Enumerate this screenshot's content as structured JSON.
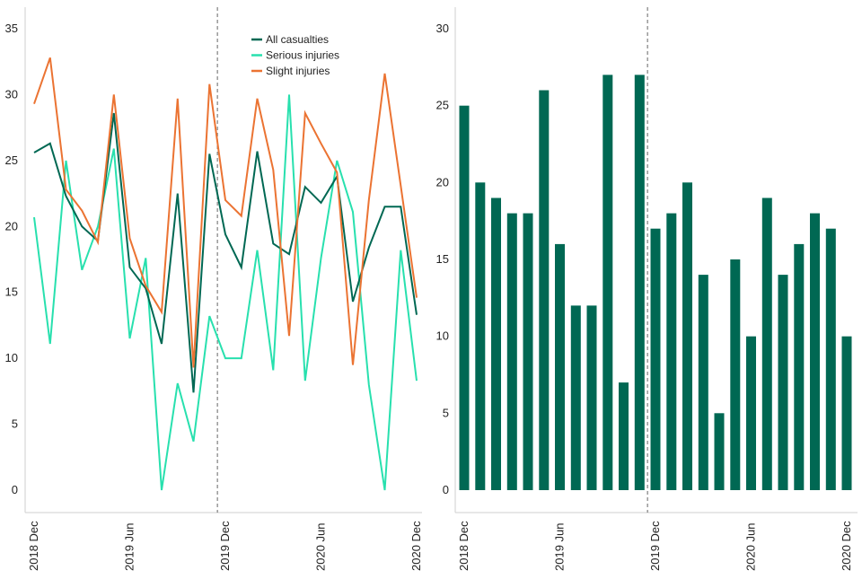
{
  "chart_data": [
    {
      "type": "line",
      "title": "",
      "xlabel": "",
      "ylabel": "",
      "ylim": [
        0,
        35
      ],
      "yticks": [
        0,
        5,
        10,
        15,
        20,
        25,
        30,
        35
      ],
      "x_tick_labels": [
        {
          "index": 0,
          "label": "2018  Dec"
        },
        {
          "index": 6,
          "label": "2019  Jun"
        },
        {
          "index": 12,
          "label": "2019  Dec"
        },
        {
          "index": 18,
          "label": "2020  Jun"
        },
        {
          "index": 24,
          "label": "2020  Dec"
        }
      ],
      "reference_line_index": 11.5,
      "legend_position": "top-center",
      "series": [
        {
          "name": "All casualties",
          "color": "#006853",
          "values": [
            25.6,
            26.3,
            22.3,
            20.0,
            18.9,
            28.6,
            16.9,
            15.3,
            11.1,
            22.5,
            7.4,
            25.5,
            19.4,
            16.9,
            25.7,
            18.7,
            17.9,
            23.0,
            21.8,
            23.8,
            14.3,
            18.4,
            21.5,
            21.5,
            13.3
          ]
        },
        {
          "name": "Serious injuries",
          "color": "#28E0AE",
          "values": [
            20.7,
            11.1,
            25.0,
            16.7,
            20.0,
            25.9,
            11.5,
            17.6,
            0.0,
            8.1,
            3.7,
            13.2,
            10.0,
            10.0,
            18.2,
            9.1,
            30.0,
            8.3,
            17.6,
            25.0,
            21.1,
            8.0,
            0.0,
            18.2,
            8.3
          ]
        },
        {
          "name": "Slight injuries",
          "color": "#EB7332",
          "values": [
            29.3,
            32.8,
            22.8,
            21.2,
            18.8,
            30.0,
            19.1,
            15.5,
            13.5,
            29.7,
            9.3,
            30.8,
            22.0,
            20.8,
            29.7,
            24.3,
            11.7,
            28.6,
            26.3,
            24.1,
            9.5,
            22.0,
            31.6,
            23.1,
            14.6
          ]
        }
      ]
    },
    {
      "type": "bar",
      "title": "",
      "xlabel": "",
      "ylabel": "",
      "ylim": [
        0,
        30
      ],
      "yticks": [
        0,
        5,
        10,
        15,
        20,
        25,
        30
      ],
      "x_tick_labels": [
        {
          "index": 0,
          "label": "2018  Dec"
        },
        {
          "index": 6,
          "label": "2019  Jun"
        },
        {
          "index": 12,
          "label": "2019  Dec"
        },
        {
          "index": 18,
          "label": "2020  Jun"
        },
        {
          "index": 24,
          "label": "2020  Dec"
        }
      ],
      "reference_line_index": 11.5,
      "color": "#006853",
      "values": [
        25,
        20,
        19,
        18,
        18,
        26,
        16,
        12,
        12,
        27,
        7,
        27,
        17,
        18,
        20,
        14,
        5,
        15,
        10,
        19,
        14,
        16,
        18,
        17,
        10
      ]
    }
  ]
}
